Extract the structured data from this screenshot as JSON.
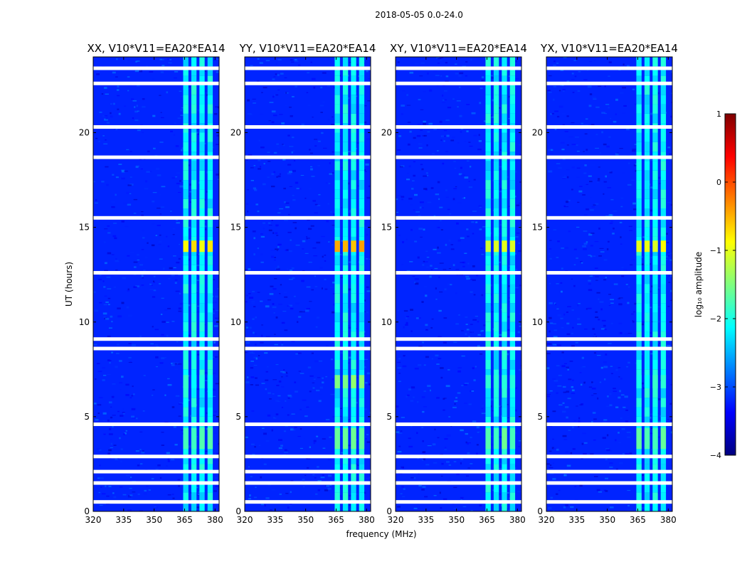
{
  "figure_title": "2018-05-05 0.0-24.0",
  "chart_data": [
    {
      "type": "heatmap",
      "title": "XX, V10*V11=EA20*EA14",
      "xlabel": "",
      "ylabel": "UT (hours)",
      "xlim": [
        320,
        382
      ],
      "ylim": [
        0,
        24
      ],
      "xticks": [
        "320",
        "335",
        "350",
        "365",
        "380"
      ],
      "yticks": [
        "0",
        "5",
        "10",
        "15",
        "20"
      ],
      "rfi_band_mhz": [
        364,
        380
      ],
      "strong_rfi": [
        {
          "ut_start": 13.7,
          "ut_end": 14.3,
          "log10_amplitude": -0.8
        },
        {
          "ut_start": 3.3,
          "ut_end": 4.4,
          "log10_amplitude": -1.7
        },
        {
          "ut_start": 6.5,
          "ut_end": 7.2,
          "log10_amplitude": -2.0
        }
      ],
      "flagged_ut": [
        0.5,
        1.5,
        2.1,
        2.9,
        4.6,
        8.6,
        9.1,
        12.6,
        15.5,
        18.7,
        20.3,
        22.6,
        23.4
      ]
    },
    {
      "type": "heatmap",
      "title": "YY, V10*V11=EA20*EA14",
      "xlabel": "frequency (MHz)",
      "ylabel": "",
      "xlim": [
        320,
        382
      ],
      "ylim": [
        0,
        24
      ],
      "xticks": [
        "320",
        "335",
        "350",
        "365",
        "380"
      ],
      "yticks": [
        "0",
        "5",
        "10",
        "15",
        "20"
      ],
      "rfi_band_mhz": [
        364,
        380
      ],
      "strong_rfi": [
        {
          "ut_start": 13.7,
          "ut_end": 14.3,
          "log10_amplitude": -0.5
        },
        {
          "ut_start": 3.3,
          "ut_end": 4.4,
          "log10_amplitude": -1.6
        },
        {
          "ut_start": 6.5,
          "ut_end": 7.2,
          "log10_amplitude": -1.5
        }
      ],
      "flagged_ut": [
        0.5,
        1.5,
        2.1,
        2.9,
        4.6,
        8.6,
        9.1,
        12.6,
        15.5,
        18.7,
        20.3,
        22.6,
        23.4
      ]
    },
    {
      "type": "heatmap",
      "title": "XY, V10*V11=EA20*EA14",
      "xlabel": "",
      "ylabel": "",
      "xlim": [
        320,
        382
      ],
      "ylim": [
        0,
        24
      ],
      "xticks": [
        "320",
        "335",
        "350",
        "365",
        "380"
      ],
      "yticks": [
        "0",
        "5",
        "10",
        "15",
        "20"
      ],
      "rfi_band_mhz": [
        364,
        380
      ],
      "strong_rfi": [
        {
          "ut_start": 13.7,
          "ut_end": 14.3,
          "log10_amplitude": -1.1
        },
        {
          "ut_start": 3.3,
          "ut_end": 4.4,
          "log10_amplitude": -1.7
        },
        {
          "ut_start": 6.5,
          "ut_end": 7.2,
          "log10_amplitude": -1.9
        }
      ],
      "flagged_ut": [
        0.5,
        1.5,
        2.1,
        2.9,
        4.6,
        8.6,
        9.1,
        12.6,
        15.5,
        18.7,
        20.3,
        22.6,
        23.4
      ]
    },
    {
      "type": "heatmap",
      "title": "YX, V10*V11=EA20*EA14",
      "xlabel": "",
      "ylabel": "",
      "xlim": [
        320,
        382
      ],
      "ylim": [
        0,
        24
      ],
      "xticks": [
        "320",
        "335",
        "350",
        "365",
        "380"
      ],
      "yticks": [
        "0",
        "5",
        "10",
        "15",
        "20"
      ],
      "rfi_band_mhz": [
        364,
        380
      ],
      "strong_rfi": [
        {
          "ut_start": 13.7,
          "ut_end": 14.3,
          "log10_amplitude": -1.0
        },
        {
          "ut_start": 3.3,
          "ut_end": 4.4,
          "log10_amplitude": -1.7
        },
        {
          "ut_start": 6.5,
          "ut_end": 7.2,
          "log10_amplitude": -2.0
        }
      ],
      "flagged_ut": [
        0.5,
        1.5,
        2.1,
        2.9,
        4.6,
        8.6,
        9.1,
        12.6,
        15.5,
        18.7,
        20.3,
        22.6,
        23.4
      ]
    }
  ],
  "colorbar": {
    "label": "log₁₀ amplitude",
    "range": [
      -4,
      1
    ],
    "ticks": [
      "1",
      "0",
      "−1",
      "−2",
      "−3",
      "−4"
    ],
    "colormap": "jet",
    "colors": [
      "#00007f",
      "#0000ff",
      "#007fff",
      "#00ffff",
      "#7fff7f",
      "#ffff00",
      "#ff7f00",
      "#ff0000",
      "#7f0000"
    ],
    "background_level": -3.2
  }
}
